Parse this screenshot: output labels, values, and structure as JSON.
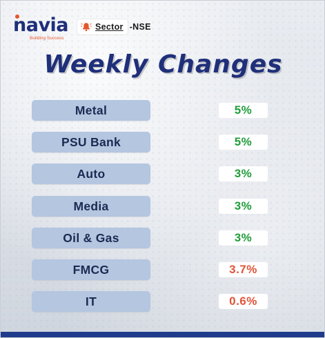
{
  "brand": {
    "name": "navia",
    "tagline": "Building Success"
  },
  "tag": {
    "icon": "bell-icon",
    "label": "Sector",
    "exchange": "-NSE"
  },
  "title": "Weekly Changes",
  "colors": {
    "title": "#1f2f7a",
    "positive": "#1f9e3a",
    "negative": "#e0553a",
    "row_fill": "#b4c6e0",
    "footer": "#1f3b8c"
  },
  "sectors": [
    {
      "name": "Metal",
      "change": "5%",
      "direction": "up"
    },
    {
      "name": "PSU Bank",
      "change": "5%",
      "direction": "up"
    },
    {
      "name": "Auto",
      "change": "3%",
      "direction": "up"
    },
    {
      "name": "Media",
      "change": "3%",
      "direction": "up"
    },
    {
      "name": "Oil & Gas",
      "change": "3%",
      "direction": "up"
    },
    {
      "name": "FMCG",
      "change": "3.7%",
      "direction": "down"
    },
    {
      "name": "IT",
      "change": "0.6%",
      "direction": "down"
    }
  ]
}
